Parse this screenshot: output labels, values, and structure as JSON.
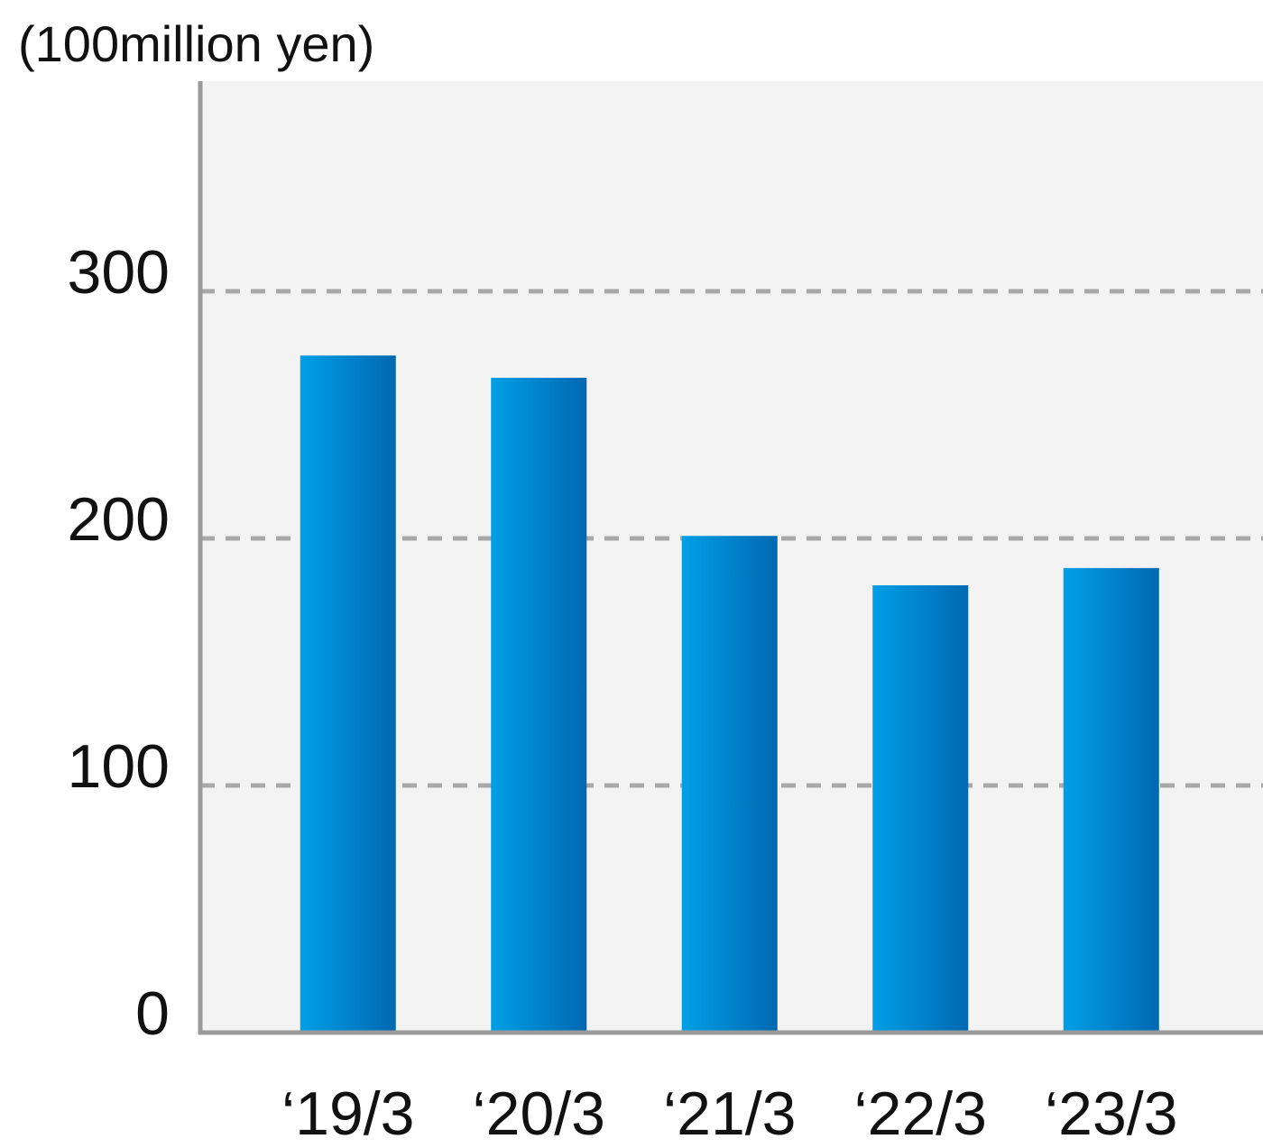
{
  "chart_data": {
    "type": "bar",
    "ylabel": "(100million yen)",
    "categories": [
      "‘19/3",
      "‘20/3",
      "‘21/3",
      "‘22/3",
      "‘23/3"
    ],
    "values": [
      274,
      265,
      201,
      181,
      188
    ],
    "ylim": [
      0,
      385
    ],
    "yticks": [
      0,
      100,
      200,
      300
    ],
    "ytick_labels": [
      "0",
      "100",
      "200",
      "300"
    ],
    "grid": true,
    "colors": {
      "plot_background": "#f3f3f3",
      "bar_light": "#009fe6",
      "bar_dark": "#0068b2",
      "gridline": "#a8a8a8",
      "axis": "#9a9a9a"
    }
  }
}
